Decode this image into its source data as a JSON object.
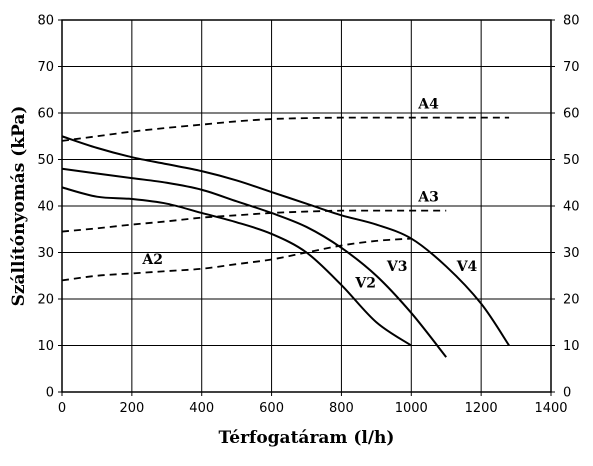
{
  "chart_data": {
    "type": "line",
    "xlabel": "Térfogatáram (l/h)",
    "ylabel": "Szállítónyomás (kPa)",
    "xlim": [
      0,
      1400
    ],
    "ylim": [
      0,
      80
    ],
    "x_ticks": [
      0,
      200,
      400,
      600,
      800,
      1000,
      1200,
      1400
    ],
    "y_ticks": [
      0,
      10,
      20,
      30,
      40,
      50,
      60,
      70,
      80
    ],
    "right_y_ticks": [
      0,
      10,
      20,
      30,
      40,
      50,
      60,
      70,
      80
    ],
    "grid": true,
    "series": [
      {
        "name": "V2",
        "style": "solid",
        "x": [
          0,
          100,
          200,
          300,
          400,
          500,
          600,
          700,
          800,
          900,
          1000
        ],
        "y": [
          44,
          42,
          41.5,
          40.5,
          38.5,
          36.5,
          34,
          30,
          23,
          15,
          10
        ]
      },
      {
        "name": "V3",
        "style": "solid",
        "x": [
          0,
          100,
          200,
          300,
          400,
          500,
          600,
          700,
          800,
          900,
          1000,
          1100
        ],
        "y": [
          48,
          47,
          46,
          45,
          43.5,
          41,
          38.5,
          35.5,
          31,
          25,
          17,
          7.5
        ]
      },
      {
        "name": "V4",
        "style": "solid",
        "x": [
          0,
          100,
          200,
          300,
          400,
          500,
          600,
          700,
          800,
          900,
          1000,
          1100,
          1200,
          1280
        ],
        "y": [
          55,
          52.5,
          50.5,
          49,
          47.5,
          45.5,
          43,
          40.5,
          38,
          36,
          33,
          27,
          19,
          10
        ]
      },
      {
        "name": "A2",
        "style": "dashed",
        "x": [
          0,
          100,
          200,
          300,
          400,
          500,
          600,
          700,
          800,
          900,
          1000
        ],
        "y": [
          24,
          25,
          25.5,
          26,
          26.5,
          27.5,
          28.5,
          30,
          31.5,
          32.5,
          33
        ]
      },
      {
        "name": "A3",
        "style": "dashed",
        "x": [
          0,
          100,
          200,
          300,
          400,
          500,
          600,
          700,
          800,
          900,
          1000,
          1100
        ],
        "y": [
          34.5,
          35.2,
          36,
          36.7,
          37.5,
          38,
          38.5,
          38.8,
          39,
          39,
          39,
          39
        ]
      },
      {
        "name": "A4",
        "style": "dashed",
        "x": [
          0,
          100,
          200,
          300,
          400,
          500,
          600,
          700,
          800,
          900,
          1000,
          1100,
          1200,
          1280
        ],
        "y": [
          54,
          55,
          56,
          56.8,
          57.5,
          58.2,
          58.7,
          58.9,
          59,
          59,
          59,
          59,
          59,
          59
        ]
      }
    ],
    "labels": [
      {
        "text": "A4",
        "x": 1020,
        "y": 61
      },
      {
        "text": "A3",
        "x": 1020,
        "y": 41
      },
      {
        "text": "A2",
        "x": 230,
        "y": 27.5
      },
      {
        "text": "V2",
        "x": 840,
        "y": 22.5
      },
      {
        "text": "V3",
        "x": 930,
        "y": 26
      },
      {
        "text": "V4",
        "x": 1130,
        "y": 26
      }
    ]
  }
}
